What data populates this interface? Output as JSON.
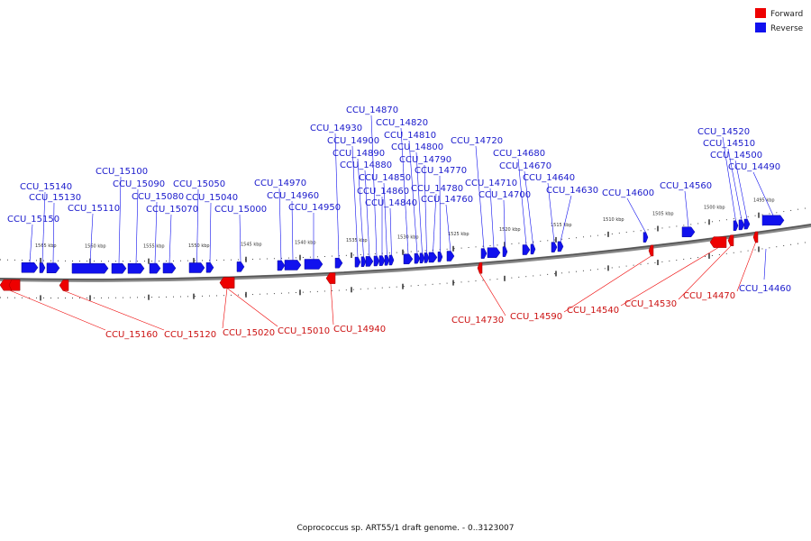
{
  "legend": [
    {
      "label": "Forward",
      "color": "#ee0000"
    },
    {
      "label": "Reverse",
      "color": "#1111ee"
    }
  ],
  "caption": "Coprococcus sp. ART55/1 draft genome. - 0..3123007",
  "scale_labels": [
    "1565 kbp",
    "1560 kbp",
    "1555 kbp",
    "1550 kbp",
    "1545 kbp",
    "1540 kbp",
    "1535 kbp",
    "1530 kbp",
    "1525 kbp",
    "1520 kbp",
    "1515 kbp",
    "1510 kbp",
    "1505 kbp",
    "1500 kbp",
    "1495 kbp"
  ],
  "reverse_genes": [
    "CCU_15150",
    "CCU_15140",
    "CCU_15130",
    "CCU_15110",
    "CCU_15100",
    "CCU_15090",
    "CCU_15080",
    "CCU_15070",
    "CCU_15050",
    "CCU_15040",
    "CCU_15000",
    "CCU_14970",
    "CCU_14960",
    "CCU_14950",
    "CCU_14930",
    "CCU_14900",
    "CCU_14890",
    "CCU_14880",
    "CCU_14870",
    "CCU_14860",
    "CCU_14850",
    "CCU_14840",
    "CCU_14820",
    "CCU_14810",
    "CCU_14800",
    "CCU_14790",
    "CCU_14780",
    "CCU_14770",
    "CCU_14760",
    "CCU_14720",
    "CCU_14710",
    "CCU_14700",
    "CCU_14680",
    "CCU_14670",
    "CCU_14640",
    "CCU_14630",
    "CCU_14600",
    "CCU_14560",
    "CCU_14520",
    "CCU_14510",
    "CCU_14500",
    "CCU_14490",
    "CCU_14460"
  ],
  "forward_genes": [
    "CCU_15160",
    "CCU_15120",
    "CCU_15020",
    "CCU_15010",
    "CCU_14940",
    "CCU_14730",
    "CCU_14590",
    "CCU_14540",
    "CCU_14530",
    "CCU_14470"
  ]
}
